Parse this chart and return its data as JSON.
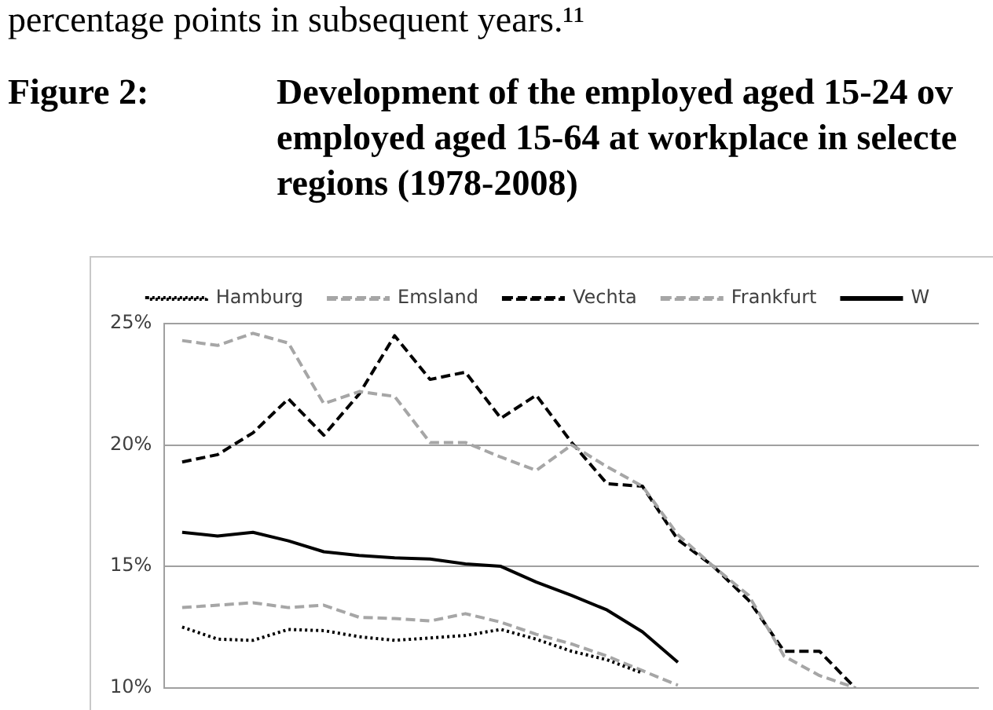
{
  "chart_data": {
    "type": "line",
    "title": "Development of the employed aged 15-24 ov employed aged 15-64 at workplace in selecte regions (1978-2008)",
    "subtitle": "Figure 2:",
    "annotations": [
      "percentage points in subsequent years.¹¹"
    ],
    "categories": [
      null,
      null,
      null,
      null,
      null,
      null,
      null,
      null,
      null,
      null,
      null,
      null,
      null,
      null,
      null,
      null,
      null,
      null,
      null,
      null,
      null,
      null,
      null
    ],
    "series": [
      {
        "name": "Hamburg",
        "color": "#000000",
        "line_style": "dotted",
        "values": [
          12.5,
          12.0,
          11.95,
          12.4,
          12.35,
          12.1,
          11.95,
          12.05,
          12.15,
          12.4,
          12.0,
          11.5,
          11.15,
          10.6,
          null,
          null,
          null,
          null,
          null,
          null,
          null,
          null,
          null
        ]
      },
      {
        "name": "Emsland",
        "color": "#a6a6a6",
        "line_style": "dashed",
        "values": [
          24.3,
          24.1,
          24.6,
          24.2,
          21.7,
          22.2,
          22.0,
          20.1,
          20.1,
          19.5,
          18.95,
          20.0,
          19.1,
          18.3,
          16.3,
          15.0,
          13.8,
          11.3,
          10.5,
          10.0,
          null,
          null,
          null
        ]
      },
      {
        "name": "Vechta",
        "color": "#000000",
        "line_style": "dashed",
        "values": [
          19.3,
          19.6,
          20.5,
          21.9,
          20.4,
          22.1,
          24.5,
          22.7,
          23.0,
          21.1,
          22.05,
          20.1,
          18.4,
          18.3,
          16.1,
          15.0,
          13.6,
          11.5,
          11.5,
          10.0,
          null,
          null,
          null
        ]
      },
      {
        "name": "Frankfurt",
        "color": "#a6a6a6",
        "line_style": "dashed",
        "values": [
          13.3,
          13.4,
          13.5,
          13.3,
          13.4,
          12.9,
          12.85,
          12.75,
          13.05,
          12.7,
          12.2,
          11.8,
          11.3,
          10.7,
          10.1,
          null,
          null,
          null,
          null,
          null,
          null,
          null,
          null
        ]
      },
      {
        "name": "W",
        "color": "#000000",
        "line_style": "solid",
        "values": [
          16.4,
          16.25,
          16.4,
          16.05,
          15.6,
          15.45,
          15.35,
          15.3,
          15.1,
          15.0,
          14.35,
          13.8,
          13.2,
          12.3,
          11.05,
          null,
          null,
          null,
          null,
          null,
          null,
          null,
          null
        ]
      }
    ],
    "ylim": [
      10,
      25
    ],
    "yticks": [
      {
        "value": 10,
        "label": "10%"
      },
      {
        "value": 15,
        "label": "15%"
      },
      {
        "value": 20,
        "label": "20%"
      },
      {
        "value": 25,
        "label": "25%"
      }
    ],
    "grid": "y",
    "legend": "top",
    "marker": "none",
    "tick_labels": "y"
  }
}
